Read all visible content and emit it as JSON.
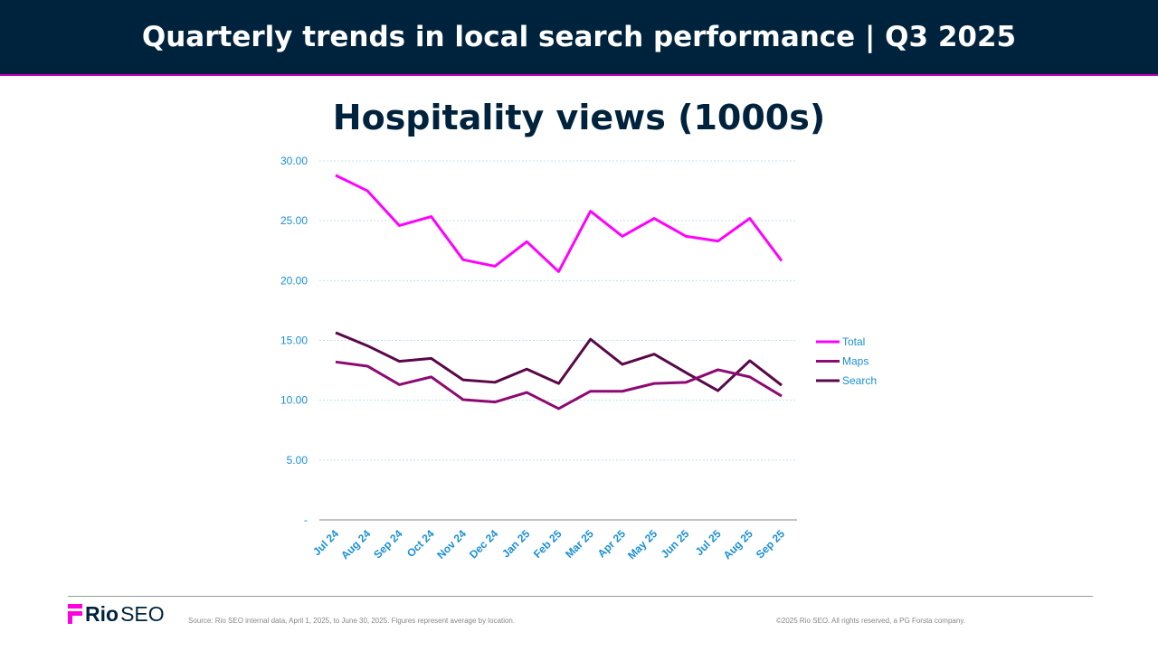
{
  "header": {
    "title": "Quarterly trends in local search performance  |  Q3 2025"
  },
  "chart_data": {
    "type": "line",
    "title": "Hospitality views (1000s)",
    "categories": [
      "Jul 24",
      "Aug 24",
      "Sep 24",
      "Oct 24",
      "Nov 24",
      "Dec 24",
      "Jan 25",
      "Feb 25",
      "Mar 25",
      "Apr 25",
      "May 25",
      "Jun 25",
      "Jul 25",
      "Aug 25",
      "Sep 25"
    ],
    "ylim": [
      0,
      30
    ],
    "yticks": [
      "-",
      "5.00",
      "10.00",
      "15.00",
      "20.00",
      "25.00",
      "30.00"
    ],
    "grid": true,
    "legend": "right",
    "series": [
      {
        "name": "Total",
        "color": "#ff00ff",
        "values": [
          28.8,
          27.5,
          24.6,
          25.35,
          21.75,
          21.2,
          23.25,
          20.75,
          25.8,
          23.7,
          25.2,
          23.7,
          23.3,
          25.2,
          21.65
        ]
      },
      {
        "name": "Maps",
        "color": "#8c0a72",
        "values": [
          13.2,
          12.85,
          11.3,
          11.95,
          10.05,
          9.85,
          10.65,
          9.3,
          10.75,
          10.75,
          11.4,
          11.5,
          12.55,
          11.95,
          10.35
        ]
      },
      {
        "name": "Search",
        "color": "#5a0848",
        "values": [
          15.65,
          14.55,
          13.25,
          13.5,
          11.7,
          11.5,
          12.6,
          11.4,
          15.1,
          13.0,
          13.85,
          12.3,
          10.8,
          13.3,
          11.25
        ]
      }
    ]
  },
  "footer": {
    "logo": "Rio SEO",
    "source": "Source: Rio SEO internal data, April 1, 2025, to June 30, 2025. Figures represent average by location.",
    "copyright": "©2025 Rio SEO. All rights reserved, a PG Forsta company."
  }
}
